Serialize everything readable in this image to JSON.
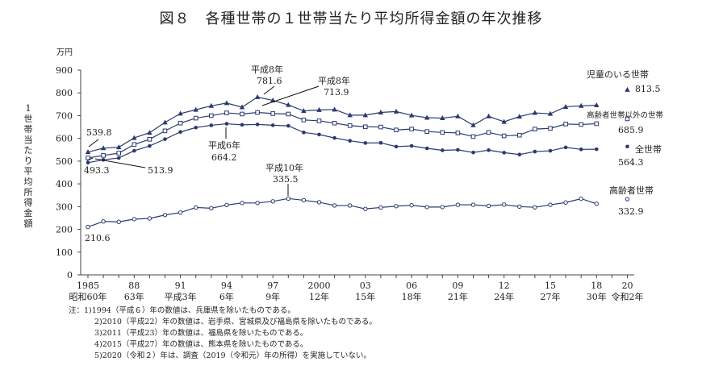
{
  "title": "図８　各種世帯の１世帯当たり平均所得金額の年次推移",
  "chart_data": {
    "type": "line",
    "title": "図８　各種世帯の１世帯当たり平均所得金額の年次推移",
    "unit": "万円",
    "ylabel": "1世帯当たり平均所得金額",
    "ylim": [
      0,
      900
    ],
    "yticks": [
      0,
      100,
      200,
      300,
      400,
      500,
      600,
      700,
      800,
      900
    ],
    "grid": false,
    "x": [
      1985,
      1986,
      1987,
      1988,
      1989,
      1990,
      1991,
      1992,
      1993,
      1994,
      1995,
      1996,
      1997,
      1998,
      1999,
      2000,
      2001,
      2002,
      2003,
      2004,
      2005,
      2006,
      2007,
      2008,
      2009,
      2010,
      2011,
      2012,
      2013,
      2014,
      2015,
      2016,
      2017,
      2018
    ],
    "xticks": [
      {
        "year": 1985,
        "top": "1985",
        "bottom": "昭和60年"
      },
      {
        "year": 1988,
        "top": "88",
        "bottom": "63年"
      },
      {
        "year": 1991,
        "top": "91",
        "bottom": "平成3年"
      },
      {
        "year": 1994,
        "top": "94",
        "bottom": "6年"
      },
      {
        "year": 1997,
        "top": "97",
        "bottom": "9年"
      },
      {
        "year": 2000,
        "top": "2000",
        "bottom": "12年"
      },
      {
        "year": 2003,
        "top": "03",
        "bottom": "15年"
      },
      {
        "year": 2006,
        "top": "06",
        "bottom": "18年"
      },
      {
        "year": 2009,
        "top": "09",
        "bottom": "21年"
      },
      {
        "year": 2012,
        "top": "12",
        "bottom": "24年"
      },
      {
        "year": 2015,
        "top": "15",
        "bottom": "27年"
      },
      {
        "year": 2018,
        "top": "18",
        "bottom": "30年"
      },
      {
        "year": 2020,
        "top": "20",
        "bottom": "令和2年"
      }
    ],
    "series": [
      {
        "name": "児童のいる世帯",
        "marker": "triangle",
        "values": [
          539.8,
          557,
          561,
          602,
          625,
          670,
          709,
          726,
          743,
          755,
          737,
          781.6,
          767,
          747,
          721,
          725,
          727,
          702,
          702,
          714,
          718,
          701,
          691,
          689,
          697,
          658,
          697,
          673,
          696,
          712,
          708,
          739,
          743,
          745.9
        ],
        "latest": {
          "year": 2020,
          "value": 813.5,
          "label": "813.5"
        }
      },
      {
        "name": "高齢者世帯以外の世帯",
        "marker": "hollow-square",
        "values": [
          513.9,
          525,
          535,
          573,
          596,
          633,
          667,
          689,
          700,
          712,
          707,
          713.9,
          709,
          707,
          681,
          677,
          667,
          656,
          651,
          650,
          637,
          641,
          630,
          626,
          624,
          608,
          626,
          611,
          614,
          641,
          644,
          663,
          661,
          664.5
        ],
        "latest": {
          "year": 2020,
          "value": 685.9,
          "label": "685.9"
        }
      },
      {
        "name": "全世帯",
        "marker": "dot",
        "values": [
          493.3,
          505.6,
          513.9,
          545.3,
          566.7,
          596.6,
          628.1,
          647.5,
          657.5,
          664.2,
          659.6,
          661.2,
          657.7,
          655.2,
          626.0,
          616.9,
          602.0,
          589.3,
          579.7,
          580.4,
          563.8,
          566.8,
          556.2,
          547.5,
          549.6,
          538.0,
          548.2,
          537.2,
          528.9,
          541.9,
          545.4,
          560.2,
          551.6,
          552.3
        ],
        "latest": {
          "year": 2020,
          "value": 564.3,
          "label": "564.3"
        }
      },
      {
        "name": "高齢者世帯",
        "marker": "hollow-circle",
        "values": [
          210.6,
          235,
          233,
          245,
          248,
          263,
          274,
          296,
          293,
          307,
          316,
          316,
          323,
          335.5,
          328,
          319,
          305,
          305,
          290,
          296,
          302,
          306,
          298,
          298,
          308,
          308,
          303,
          309,
          300,
          297,
          308,
          318,
          334.9,
          312.6
        ],
        "latest": {
          "year": 2020,
          "value": 332.9,
          "label": "332.9"
        }
      }
    ],
    "annotations": {
      "a1": "539.8",
      "a2": "493.3",
      "a3": "513.9",
      "a4_era": "平成6年",
      "a4": "664.2",
      "a5_era": "平成8年",
      "a5": "781.6",
      "a6_era": "平成8年",
      "a6": "713.9",
      "a7_era": "平成10年",
      "a7": "335.5",
      "a8": "210.6"
    },
    "color": "#2b3a6e"
  },
  "notes": [
    "注：1)1994（平成６）年の数値は、兵庫県を除いたものである。",
    "2)2010（平成22）年の数値は、岩手県、宮城県及び福島県を除いたものである。",
    "3)2011（平成23）年の数値は、福島県を除いたものである。",
    "4)2015（平成27）年の数値は、熊本県を除いたものである。",
    "5)2020（令和２）年は、調査（2019（令和元）年の所得）を実施していない。"
  ]
}
